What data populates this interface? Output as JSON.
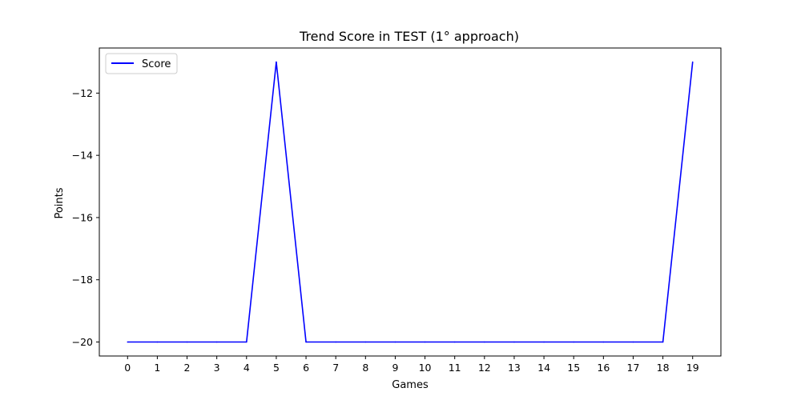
{
  "chart_data": {
    "type": "line",
    "title": "Trend Score in TEST (1° approach)",
    "xlabel": "Games",
    "ylabel": "Points",
    "x": [
      0,
      1,
      2,
      3,
      4,
      5,
      6,
      7,
      8,
      9,
      10,
      11,
      12,
      13,
      14,
      15,
      16,
      17,
      18,
      19
    ],
    "xticks": [
      0,
      1,
      2,
      3,
      4,
      5,
      6,
      7,
      8,
      9,
      10,
      11,
      12,
      13,
      14,
      15,
      16,
      17,
      18,
      19
    ],
    "yticks": [
      -20,
      -18,
      -16,
      -14,
      -12
    ],
    "ytick_labels": [
      "−20",
      "−18",
      "−16",
      "−14",
      "−12"
    ],
    "xlim": [
      -0.95,
      19.95
    ],
    "ylim": [
      -20.45,
      -10.55
    ],
    "grid": false,
    "legend_position": "upper-left",
    "series": [
      {
        "name": "Score",
        "color": "#0000ff",
        "values": [
          -20,
          -20,
          -20,
          -20,
          -20,
          -11,
          -20,
          -20,
          -20,
          -20,
          -20,
          -20,
          -20,
          -20,
          -20,
          -20,
          -20,
          -20,
          -20,
          -11
        ]
      }
    ]
  }
}
